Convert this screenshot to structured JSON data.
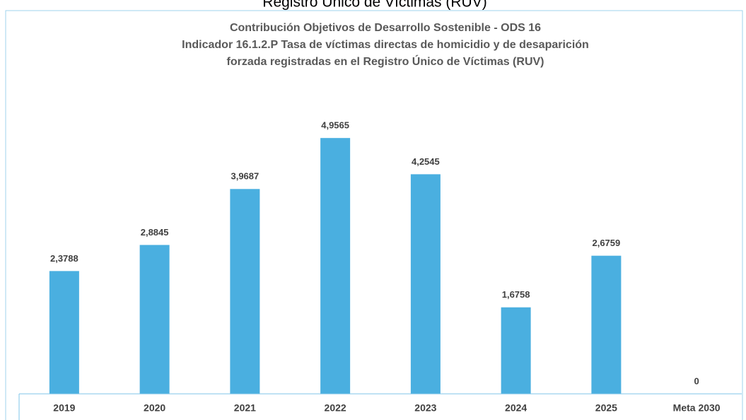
{
  "chart_data": {
    "type": "bar",
    "header": "Registro Único de Víctimas (RUV)",
    "title": [
      "Contribución Objetivos de Desarrollo Sostenible - ODS 16",
      "Indicador  16.1.2.P Tasa de víctimas directas de homicidio y de desaparición",
      "forzada registradas en el Registro Único de Víctimas (RUV)"
    ],
    "categories": [
      "2019",
      "2020",
      "2021",
      "2022",
      "2023",
      "2024",
      "2025",
      "Meta 2030"
    ],
    "values": [
      2.3788,
      2.8845,
      3.9687,
      4.9565,
      4.2545,
      1.6758,
      2.6759,
      0
    ],
    "value_labels": [
      "2,3788",
      "2,8845",
      "3,9687",
      "4,9565",
      "4,2545",
      "1,6758",
      "2,6759",
      "0"
    ],
    "color": "#4aafe0",
    "ylim": [
      0,
      6
    ]
  }
}
